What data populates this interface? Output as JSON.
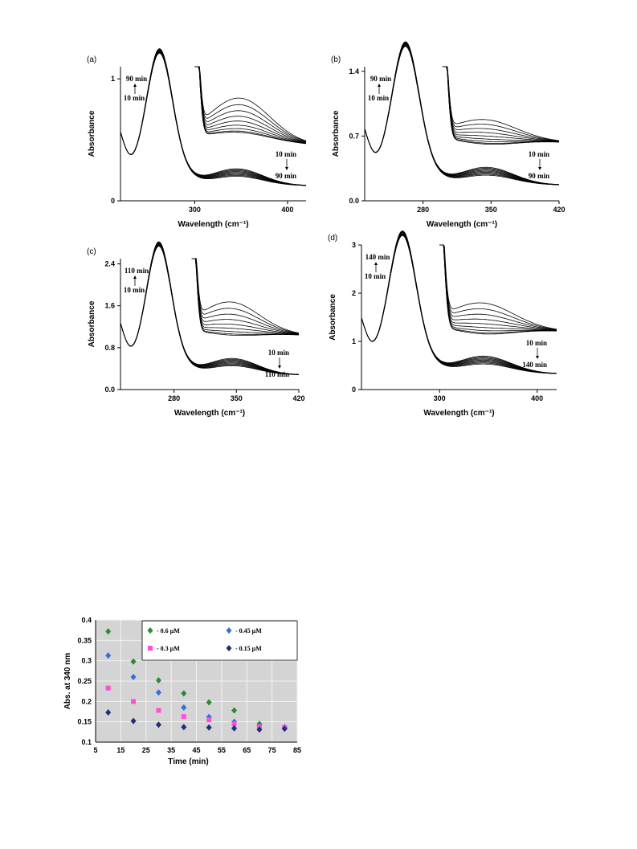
{
  "chart_data": [
    {
      "type": "line",
      "panel_label": "(a)",
      "xlabel": "Wavelength (cm⁻¹)",
      "ylabel": "Absorbance",
      "xlim": [
        220,
        420
      ],
      "ylim": [
        0,
        1.1
      ],
      "xticks": [
        300,
        400
      ],
      "yticks": [
        0,
        1
      ],
      "annotations": {
        "top_upper": "90 min",
        "top_lower": "10 min",
        "bottom_upper": "10 min",
        "bottom_lower": "90 min"
      },
      "series_count": 9,
      "main_peak": {
        "x": 262,
        "y": 1.03
      },
      "expanded_peak_x": 350,
      "expanded_peak_y_range": [
        0.72,
        1.02
      ]
    },
    {
      "type": "line",
      "panel_label": "(b)",
      "xlabel": "Wavelength (cm⁻¹)",
      "ylabel": "Absorbance",
      "xlim": [
        220,
        420
      ],
      "ylim": [
        0,
        1.45
      ],
      "xticks": [
        280,
        350,
        420
      ],
      "yticks": [
        0.0,
        0.7,
        1.4
      ],
      "tick_format": 1,
      "annotations": {
        "top_upper": "90 min",
        "top_lower": "10 min",
        "bottom_upper": "10 min",
        "bottom_lower": "90 min"
      },
      "series_count": 9,
      "main_peak": {
        "x": 262,
        "y": 1.42
      },
      "expanded_peak_x": 345,
      "expanded_peak_y_range": [
        0.82,
        1.1
      ]
    },
    {
      "type": "line",
      "panel_label": "(c)",
      "xlabel": "Wavelength (cm⁻¹)",
      "ylabel": "Absorbance",
      "xlim": [
        220,
        420
      ],
      "ylim": [
        0,
        2.5
      ],
      "xticks": [
        280,
        350,
        420
      ],
      "yticks": [
        0.0,
        0.8,
        1.6,
        2.4
      ],
      "tick_format": 1,
      "annotations": {
        "top_upper": "110 min",
        "top_lower": "10 min",
        "bottom_upper": "10 min",
        "bottom_lower": "110 min"
      },
      "series_count": 9,
      "main_peak": {
        "x": 263,
        "y": 2.33
      },
      "expanded_peak_x": 345,
      "expanded_peak_y_range": [
        1.38,
        2.05
      ]
    },
    {
      "type": "line",
      "panel_label": "(d)",
      "xlabel": "Wavelength (cm⁻¹)",
      "ylabel": "Absorbance",
      "xlim": [
        220,
        420
      ],
      "ylim": [
        0,
        3
      ],
      "xticks": [
        300,
        400
      ],
      "yticks": [
        0,
        1,
        2,
        3
      ],
      "annotations": {
        "top_upper": "140 min",
        "top_lower": "10 min",
        "bottom_upper": "10 min",
        "bottom_lower": "140 min"
      },
      "series_count": 9,
      "main_peak": {
        "x": 262,
        "y": 2.72
      },
      "expanded_peak_x": 345,
      "expanded_peak_y_range": [
        1.55,
        2.23
      ]
    },
    {
      "type": "scatter",
      "xlabel": "Time (min)",
      "ylabel": "Abs. at 340 nm",
      "xlim": [
        5,
        85
      ],
      "ylim": [
        0.1,
        0.4
      ],
      "xticks": [
        5,
        15,
        25,
        35,
        45,
        55,
        65,
        75,
        85
      ],
      "yticks": [
        0.1,
        0.15,
        0.2,
        0.25,
        0.3,
        0.35,
        0.4
      ],
      "grid": true,
      "series": [
        {
          "name": "- 0.6 µM",
          "color": "#2e8b2e",
          "marker": "diamond",
          "x": [
            10,
            20,
            30,
            40,
            50,
            60,
            70,
            80
          ],
          "y": [
            0.372,
            0.298,
            0.252,
            0.22,
            0.198,
            0.178,
            0.145,
            0.135
          ]
        },
        {
          "name": "- 0.45 µM",
          "color": "#2f6fe0",
          "marker": "diamond",
          "x": [
            10,
            20,
            30,
            40,
            50,
            60,
            70,
            80
          ],
          "y": [
            0.313,
            0.26,
            0.222,
            0.185,
            0.162,
            0.15,
            0.14,
            0.137
          ]
        },
        {
          "name": "- 0.3 µM",
          "color": "#ff4fd8",
          "marker": "square",
          "x": [
            10,
            20,
            30,
            40,
            50,
            60,
            70,
            80
          ],
          "y": [
            0.233,
            0.2,
            0.178,
            0.163,
            0.155,
            0.145,
            0.138,
            0.136
          ]
        },
        {
          "name": "- 0.15 µM",
          "color": "#1f2f7a",
          "marker": "diamond",
          "x": [
            10,
            20,
            30,
            40,
            50,
            60,
            70,
            80
          ],
          "y": [
            0.173,
            0.152,
            0.143,
            0.137,
            0.136,
            0.134,
            0.131,
            0.133
          ]
        }
      ]
    }
  ]
}
